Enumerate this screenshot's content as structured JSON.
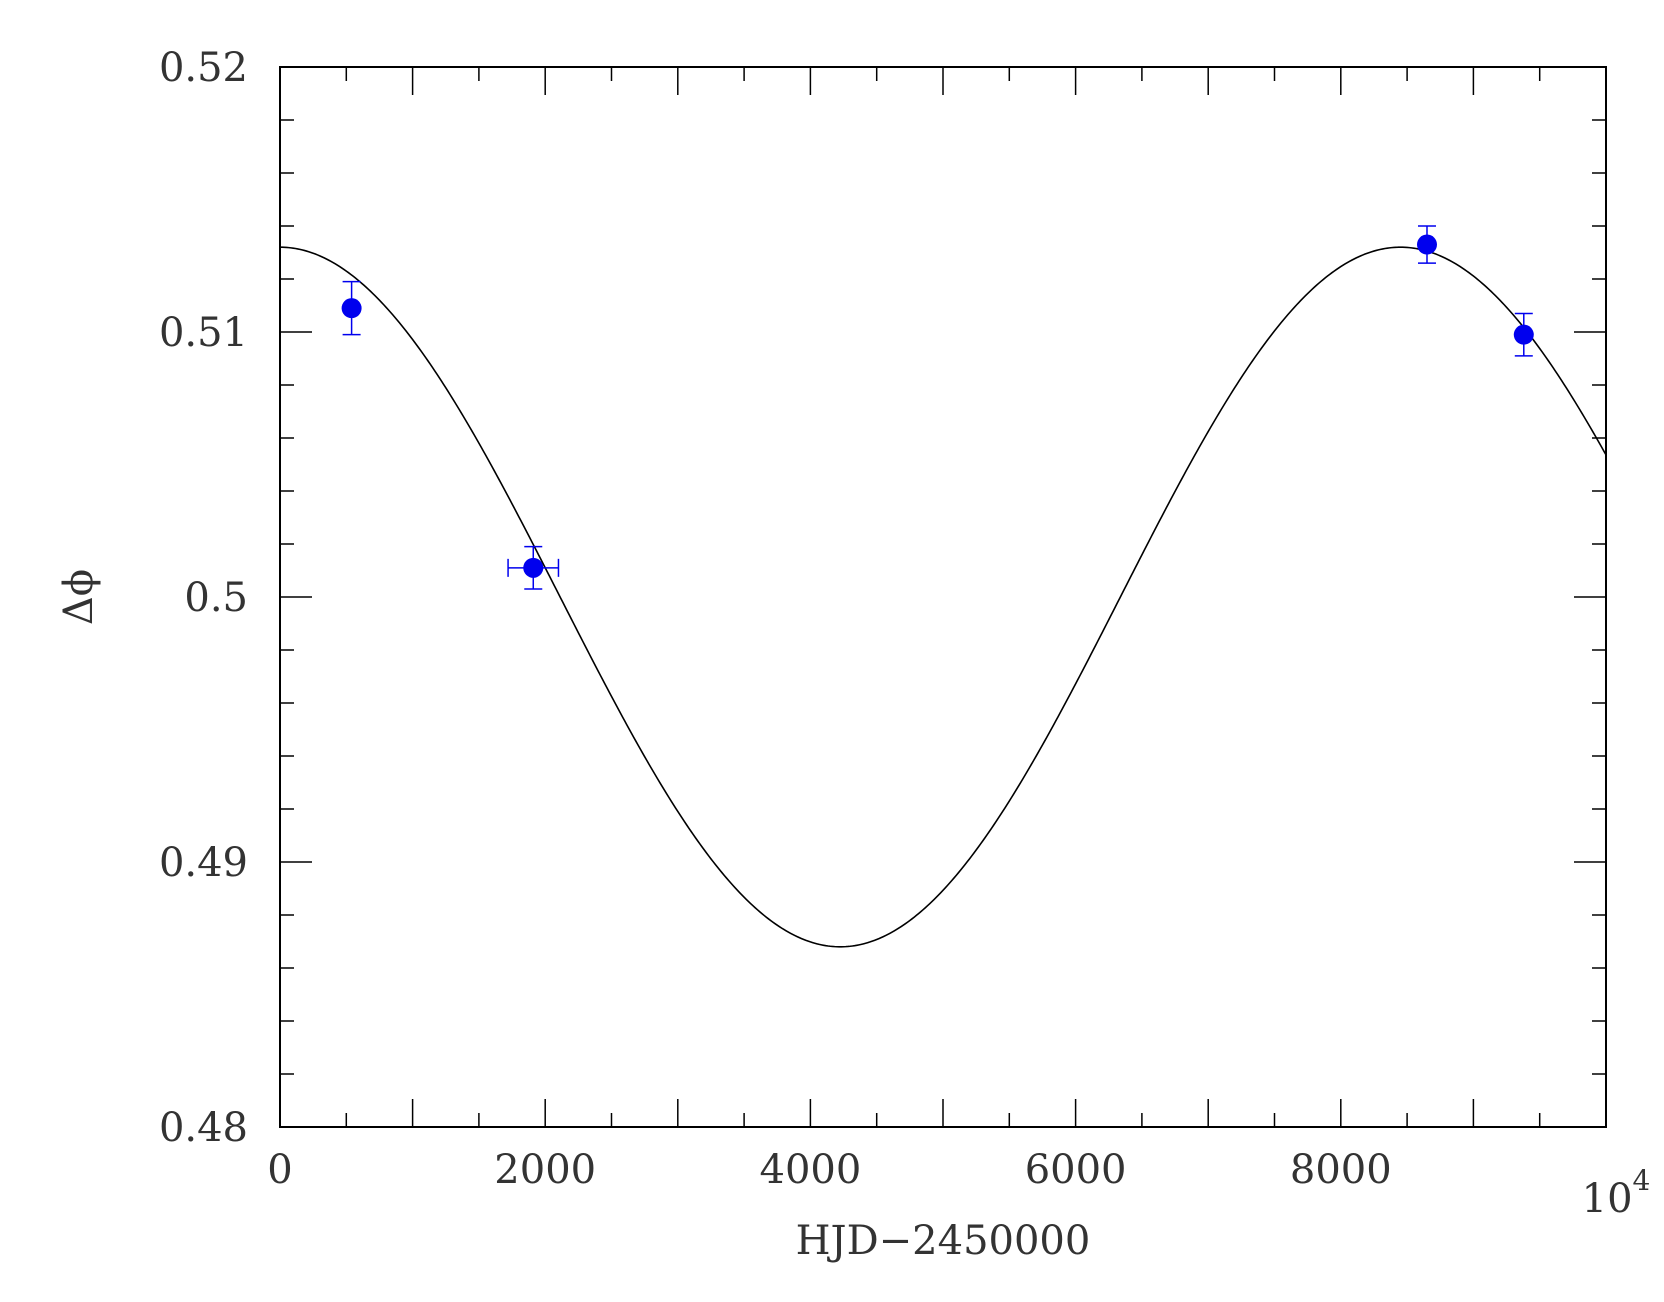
{
  "chart_data": {
    "type": "scatter",
    "xlabel": "HJD−2450000",
    "ylabel": "Δϕ",
    "xlim": [
      0,
      10000
    ],
    "ylim": [
      0.48,
      0.52
    ],
    "x_ticks": [
      {
        "value": 0,
        "label": "0"
      },
      {
        "value": 2000,
        "label": "2000"
      },
      {
        "value": 4000,
        "label": "4000"
      },
      {
        "value": 6000,
        "label": "6000"
      },
      {
        "value": 8000,
        "label": "8000"
      },
      {
        "value": 10000,
        "label": "10",
        "exp": "4"
      }
    ],
    "y_ticks": [
      {
        "value": 0.48,
        "label": "0.48"
      },
      {
        "value": 0.49,
        "label": "0.49"
      },
      {
        "value": 0.5,
        "label": "0.5"
      },
      {
        "value": 0.51,
        "label": "0.51"
      },
      {
        "value": 0.52,
        "label": "0.52"
      }
    ],
    "x_minor_step": 500,
    "y_minor_step": 0.002,
    "points": [
      {
        "x": 540,
        "y": 0.5109,
        "xerr": 0,
        "yerr": 0.001
      },
      {
        "x": 1910,
        "y": 0.5011,
        "xerr": 190,
        "yerr": 0.0008
      },
      {
        "x": 8650,
        "y": 0.5133,
        "xerr": 0,
        "yerr": 0.0007
      },
      {
        "x": 9380,
        "y": 0.5099,
        "xerr": 0,
        "yerr": 0.0008
      }
    ],
    "fit_curve": {
      "offset": 0.5,
      "amplitude": 0.0132,
      "period": 8450,
      "phase_x": 0
    },
    "colors": {
      "points": "#0000ee",
      "curve": "#000000",
      "axes": "#000000"
    }
  }
}
